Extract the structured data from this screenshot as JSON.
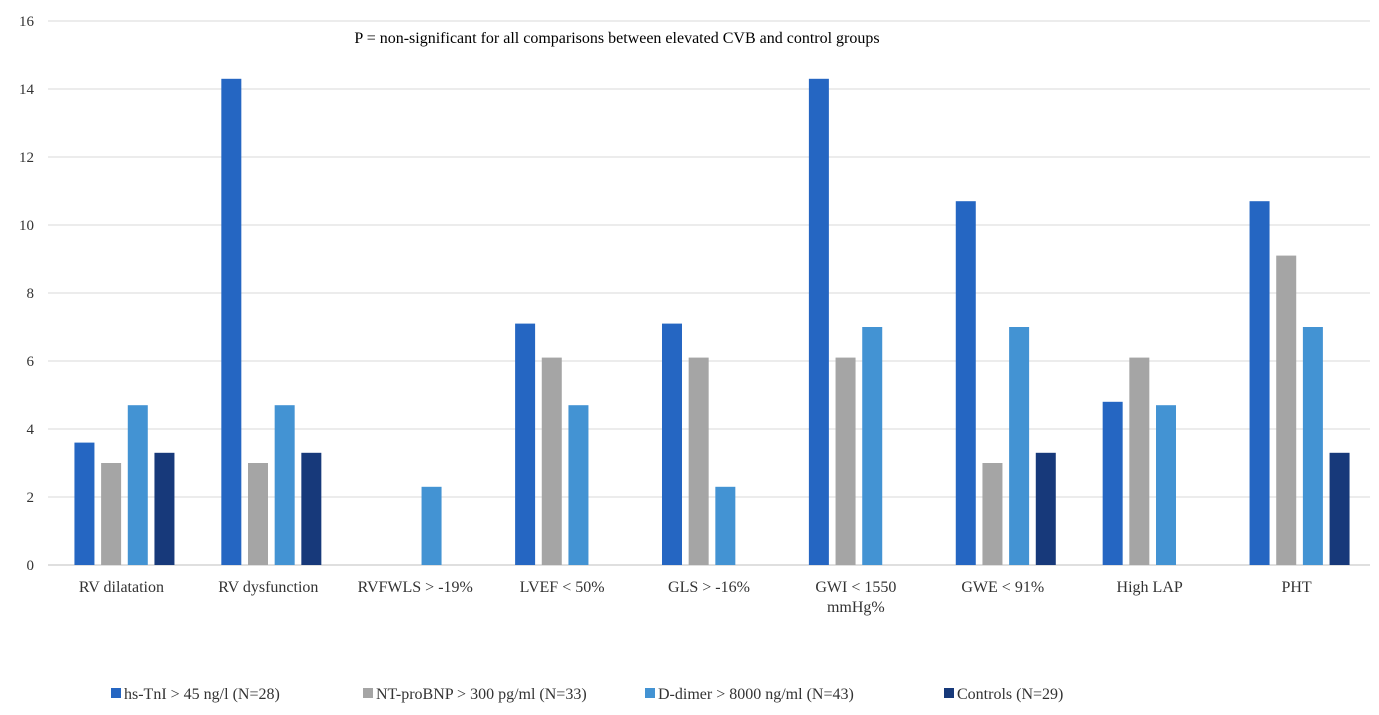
{
  "chart_data": {
    "type": "bar",
    "title": "",
    "annotation": "P = non-significant for all comparisons between elevated CVB and control groups",
    "xlabel": "",
    "ylabel": "",
    "ylim": [
      0,
      16
    ],
    "yticks": [
      0,
      2,
      4,
      6,
      8,
      10,
      12,
      14,
      16
    ],
    "categories": [
      [
        "RV dilatation"
      ],
      [
        "RV dysfunction"
      ],
      [
        "RVFWLS > -19%"
      ],
      [
        "LVEF < 50%"
      ],
      [
        "GLS > -16%"
      ],
      [
        "GWI < 1550",
        "mmHg%"
      ],
      [
        "GWE < 91%"
      ],
      [
        "High LAP"
      ],
      [
        "PHT"
      ]
    ],
    "series": [
      {
        "name": "hs-TnI > 45 ng/l (N=28)",
        "color": "#2566c2",
        "values": [
          3.6,
          14.3,
          0,
          7.1,
          7.1,
          14.3,
          10.7,
          4.8,
          10.7
        ]
      },
      {
        "name": "NT-proBNP > 300 pg/ml (N=33)",
        "color": "#a5a5a5",
        "values": [
          3.0,
          3.0,
          0,
          6.1,
          6.1,
          6.1,
          3.0,
          6.1,
          9.1
        ]
      },
      {
        "name": "D-dimer >  8000 ng/ml (N=43)",
        "color": "#4393d3",
        "values": [
          4.7,
          4.7,
          2.3,
          4.7,
          2.3,
          7.0,
          7.0,
          4.7,
          7.0
        ]
      },
      {
        "name": "Controls  (N=29)",
        "color": "#17397a",
        "values": [
          3.3,
          3.3,
          0,
          0,
          0,
          0,
          3.3,
          0,
          3.3
        ]
      }
    ],
    "grid": true,
    "legend_position": "bottom"
  }
}
